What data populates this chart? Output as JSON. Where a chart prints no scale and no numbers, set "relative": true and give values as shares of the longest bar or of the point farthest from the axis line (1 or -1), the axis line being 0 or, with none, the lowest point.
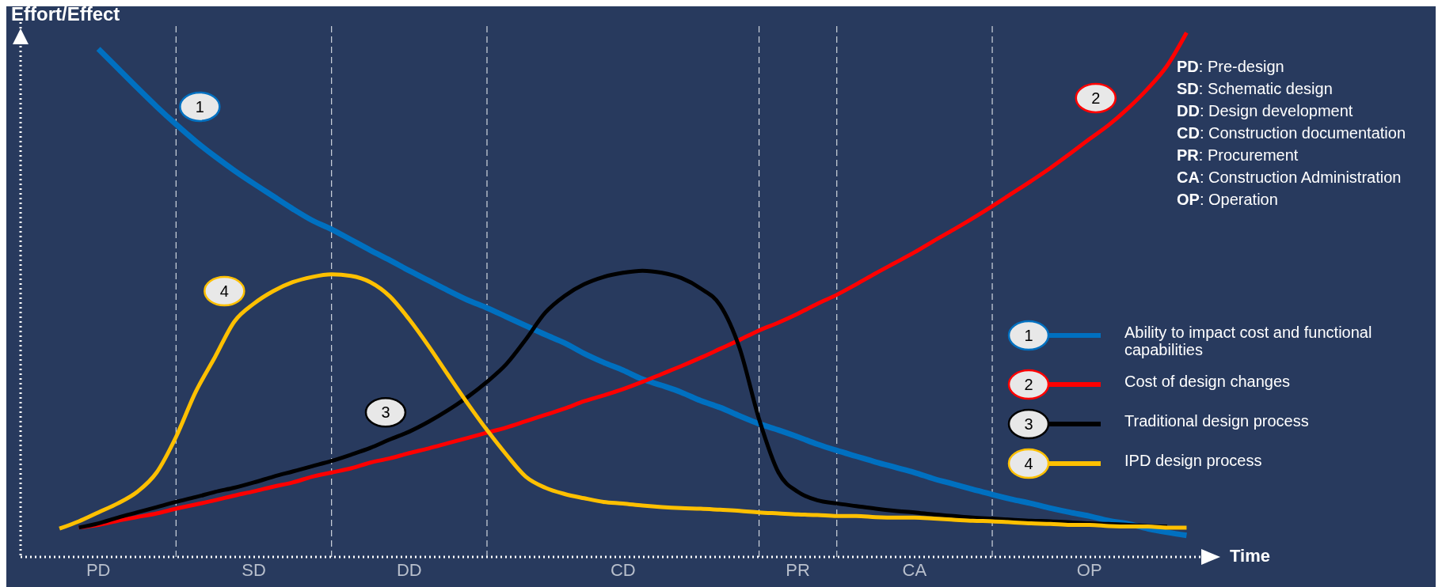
{
  "chart_data": {
    "type": "line",
    "relative": true,
    "xlabel": "Time",
    "ylabel": "Effort/Effect",
    "categories": [
      null,
      null,
      null,
      null,
      "PD",
      null,
      null,
      null,
      null,
      null,
      null,
      null,
      "SD",
      null,
      null,
      null,
      null,
      null,
      null,
      null,
      "DD",
      null,
      null,
      null,
      null,
      null,
      null,
      null,
      null,
      null,
      null,
      "CD",
      null,
      null,
      null,
      null,
      null,
      null,
      null,
      null,
      "PR",
      null,
      null,
      null,
      null,
      null,
      "CA",
      null,
      null,
      null,
      null,
      null,
      null,
      null,
      null,
      "OP",
      null,
      null,
      null,
      null,
      null
    ],
    "legend": "right",
    "marker": "none",
    "line_style": "solid",
    "grid": "x",
    "series": [
      {
        "name": "Ability to impact cost and functional capabilities",
        "color": "#0070c0",
        "values": [
          null,
          null,
          null,
          null,
          0.969,
          0.932,
          0.895,
          0.859,
          0.825,
          0.793,
          0.764,
          0.737,
          0.712,
          0.688,
          0.664,
          0.642,
          0.625,
          0.605,
          0.585,
          0.566,
          0.546,
          0.527,
          0.508,
          0.49,
          0.475,
          0.458,
          0.441,
          0.424,
          0.408,
          0.388,
          0.371,
          0.356,
          0.339,
          0.327,
          0.314,
          0.298,
          0.285,
          0.269,
          0.254,
          0.242,
          0.229,
          0.215,
          0.203,
          0.192,
          0.181,
          0.171,
          0.161,
          0.149,
          0.139,
          0.129,
          0.119,
          0.11,
          0.102,
          0.093,
          0.085,
          0.078,
          0.069,
          0.063,
          0.054,
          0.047,
          0.041
        ]
      },
      {
        "name": "Cost of design changes",
        "color": "#ff0000",
        "values": [
          null,
          null,
          null,
          0.056,
          0.061,
          0.069,
          0.076,
          0.083,
          0.092,
          0.1,
          0.108,
          0.117,
          0.125,
          0.134,
          0.142,
          0.153,
          0.161,
          0.169,
          0.18,
          0.188,
          0.198,
          0.207,
          0.217,
          0.227,
          0.237,
          0.247,
          0.259,
          0.271,
          0.283,
          0.297,
          0.308,
          0.32,
          0.334,
          0.349,
          0.364,
          0.38,
          0.397,
          0.414,
          0.432,
          0.447,
          0.464,
          0.483,
          0.5,
          0.52,
          0.541,
          0.561,
          0.581,
          0.603,
          0.624,
          0.646,
          0.669,
          0.693,
          0.717,
          0.742,
          0.769,
          0.797,
          0.824,
          0.856,
          0.893,
          0.937,
          1.0
        ]
      },
      {
        "name": "Traditional design process",
        "color": "#000000",
        "values": [
          null,
          null,
          null,
          0.056,
          0.064,
          0.075,
          0.085,
          0.095,
          0.105,
          0.114,
          0.124,
          0.132,
          0.142,
          0.153,
          0.163,
          0.173,
          0.183,
          0.195,
          0.208,
          0.224,
          0.239,
          0.258,
          0.28,
          0.305,
          0.334,
          0.368,
          0.415,
          0.466,
          0.498,
          0.52,
          0.534,
          0.542,
          0.546,
          0.542,
          0.532,
          0.512,
          0.48,
          0.398,
          0.263,
          0.161,
          0.124,
          0.108,
          0.102,
          0.097,
          0.092,
          0.088,
          0.085,
          0.081,
          0.078,
          0.075,
          0.073,
          0.071,
          0.069,
          0.068,
          0.066,
          0.064,
          0.063,
          0.061,
          0.059,
          0.058,
          null
        ]
      },
      {
        "name": "IPD design process",
        "color": "#ffc000",
        "values": [
          null,
          null,
          0.054,
          0.068,
          0.085,
          0.102,
          0.124,
          0.161,
          0.229,
          0.314,
          0.381,
          0.449,
          0.483,
          0.507,
          0.524,
          0.534,
          0.539,
          0.536,
          0.524,
          0.497,
          0.453,
          0.402,
          0.347,
          0.293,
          0.242,
          0.195,
          0.153,
          0.132,
          0.12,
          0.112,
          0.105,
          0.102,
          0.098,
          0.095,
          0.093,
          0.092,
          0.09,
          0.088,
          0.085,
          0.083,
          0.081,
          0.08,
          0.078,
          0.078,
          0.076,
          0.075,
          0.075,
          0.073,
          0.071,
          0.069,
          0.068,
          0.066,
          0.064,
          0.063,
          0.061,
          0.061,
          0.059,
          0.058,
          0.058,
          0.056,
          0.056
        ]
      }
    ],
    "annotations": [
      "1",
      "2",
      "3",
      "4",
      "PD: Pre-design",
      "SD: Schematic design",
      "DD: Design development",
      "CD: Construction documentation",
      "PR: Procurement",
      "CA: Construction Administration",
      "OP: Operation"
    ]
  }
}
